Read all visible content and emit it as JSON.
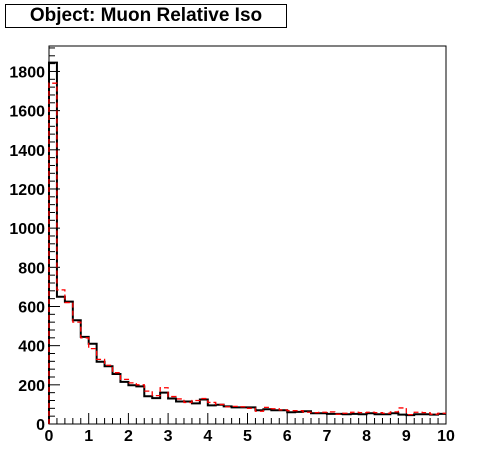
{
  "chart_data": {
    "type": "histogram",
    "title": "Object: Muon Relative Iso",
    "xlabel": "",
    "ylabel": "",
    "xlim": [
      0,
      10
    ],
    "ylim": [
      0,
      1930
    ],
    "grid": false,
    "legend": "none",
    "x_ticks": [
      "0",
      "1",
      "2",
      "3",
      "4",
      "5",
      "6",
      "7",
      "8",
      "9",
      "10"
    ],
    "y_ticks": [
      "0",
      "200",
      "400",
      "600",
      "800",
      "1000",
      "1200",
      "1400",
      "1600",
      "1800"
    ],
    "bin_edges_start": 0,
    "bin_width": 0.2,
    "series": [
      {
        "style": "solid-black-step",
        "color": "#000000",
        "values": [
          1845,
          650,
          625,
          530,
          445,
          410,
          318,
          295,
          255,
          215,
          198,
          192,
          142,
          132,
          160,
          130,
          115,
          115,
          105,
          125,
          95,
          98,
          90,
          85,
          85,
          85,
          70,
          75,
          70,
          70,
          60,
          62,
          65,
          55,
          55,
          52,
          52,
          50,
          52,
          50,
          55,
          50,
          50,
          55,
          48,
          45,
          50,
          50,
          48,
          52
        ]
      },
      {
        "style": "dashed-red-step",
        "color": "#ff0000",
        "values": [
          1740,
          685,
          620,
          520,
          440,
          385,
          330,
          300,
          262,
          228,
          210,
          200,
          168,
          145,
          185,
          140,
          128,
          110,
          120,
          130,
          110,
          100,
          88,
          90,
          88,
          80,
          65,
          85,
          78,
          72,
          68,
          68,
          60,
          58,
          60,
          62,
          50,
          55,
          60,
          58,
          60,
          58,
          55,
          62,
          82,
          48,
          60,
          58,
          50,
          55
        ]
      }
    ]
  }
}
